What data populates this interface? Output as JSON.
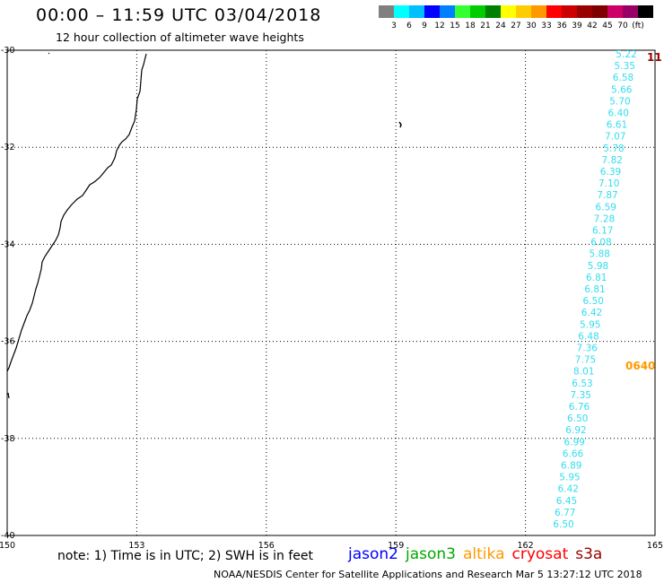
{
  "header": {
    "title": "00:00 – 11:59 UTC 03/04/2018",
    "subtitle": "12 hour collection of altimeter wave heights"
  },
  "colorbar": {
    "colors": [
      "#808080",
      "#00ffff",
      "#00bfff",
      "#0000ff",
      "#0080ff",
      "#33ff33",
      "#00cc00",
      "#008000",
      "#ffff00",
      "#ffcc00",
      "#ff9900",
      "#ff0000",
      "#cc0000",
      "#990000",
      "#800000",
      "#cc0066",
      "#990066",
      "#000000"
    ],
    "labels": [
      "3",
      "6",
      "9",
      "12",
      "15",
      "18",
      "21",
      "24",
      "27",
      "30",
      "33",
      "36",
      "39",
      "42",
      "45",
      "70",
      "(ft)"
    ]
  },
  "map": {
    "lon_ticks": [
      "150",
      "153",
      "156",
      "159",
      "162",
      "165"
    ],
    "lat_ticks": [
      "-30",
      "-32",
      "-34",
      "-36",
      "-38",
      "-40"
    ],
    "lon_range": [
      150,
      165
    ],
    "lat_range": [
      -40,
      -30
    ]
  },
  "track": {
    "color": "#33ddee",
    "values": [
      "5.22",
      "5.35",
      "6.58",
      "5.66",
      "5.70",
      "6.40",
      "6.61",
      "7.07",
      "5.78",
      "7.82",
      "6.39",
      "7.10",
      "7.87",
      "6.59",
      "7.28",
      "6.17",
      "6.08",
      "5.88",
      "5.98",
      "6.81",
      "6.81",
      "6.50",
      "6.42",
      "5.95",
      "6.48",
      "7.36",
      "7.75",
      "8.01",
      "6.53",
      "7.35",
      "6.76",
      "6.50",
      "6.92",
      "6.99",
      "6.66",
      "6.89",
      "5.95",
      "6.42",
      "6.45",
      "6.77",
      "6.50"
    ],
    "time_label": "0640",
    "time_label_color": "#ff9900",
    "right_edge_label": "11",
    "right_edge_color": "#990000"
  },
  "note": {
    "text": "note: 1) Time is in UTC; 2) SWH is in feet"
  },
  "satellites": [
    {
      "name": "jason2",
      "color": "#0000ff"
    },
    {
      "name": "jason3",
      "color": "#00aa00"
    },
    {
      "name": "altika",
      "color": "#ff9900"
    },
    {
      "name": "cryosat",
      "color": "#ff0000"
    },
    {
      "name": "s3a",
      "color": "#990000"
    }
  ],
  "footer": {
    "text": "NOAA/NESDIS Center for Satellite Applications and Research   Mar  5 13:27:12 UTC 2018"
  }
}
